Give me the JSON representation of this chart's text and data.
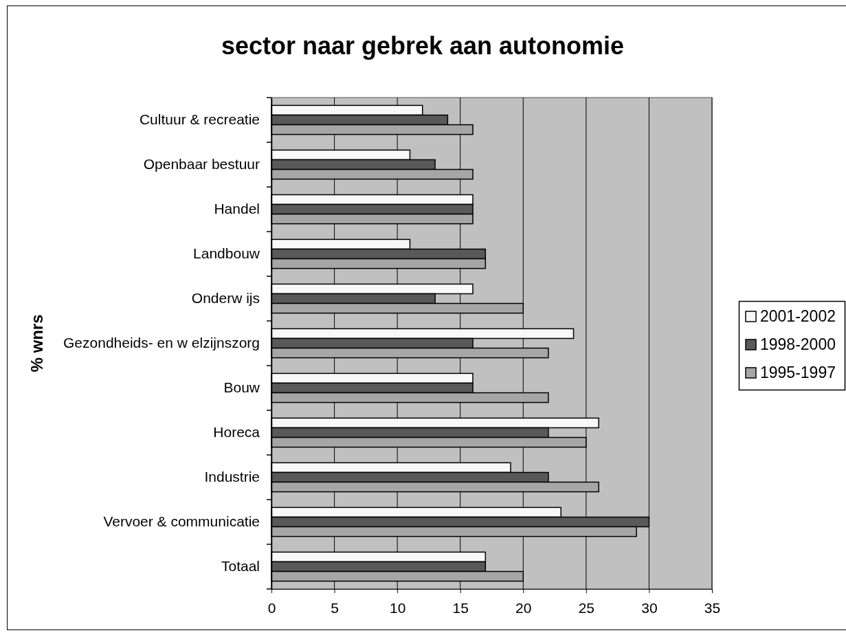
{
  "chart_data": {
    "type": "bar",
    "orientation": "horizontal",
    "title": "sector naar gebrek aan autonomie",
    "ylabel": "% wnrs",
    "categories": [
      "Cultuur & recreatie",
      "Openbaar bestuur",
      "Handel",
      "Landbouw",
      "Onderw ijs",
      "Gezondheids- en w elzijnszorg",
      "Bouw",
      "Horeca",
      "Industrie",
      "Vervoer & communicatie",
      "Totaal"
    ],
    "series": [
      {
        "name": "2001-2002",
        "color": "#f8f8f8",
        "values": [
          12,
          11,
          16,
          11,
          16,
          24,
          16,
          26,
          19,
          23,
          17
        ]
      },
      {
        "name": "1998-2000",
        "color": "#595959",
        "values": [
          14,
          13,
          16,
          17,
          13,
          16,
          16,
          22,
          22,
          30,
          17
        ]
      },
      {
        "name": "1995-1997",
        "color": "#a6a6a6",
        "values": [
          16,
          16,
          16,
          17,
          20,
          22,
          22,
          25,
          26,
          29,
          20
        ]
      }
    ],
    "xlim": [
      0,
      35
    ],
    "xticks": [
      0,
      5,
      10,
      15,
      20,
      25,
      30,
      35
    ],
    "grid": "x",
    "legend": "right"
  }
}
